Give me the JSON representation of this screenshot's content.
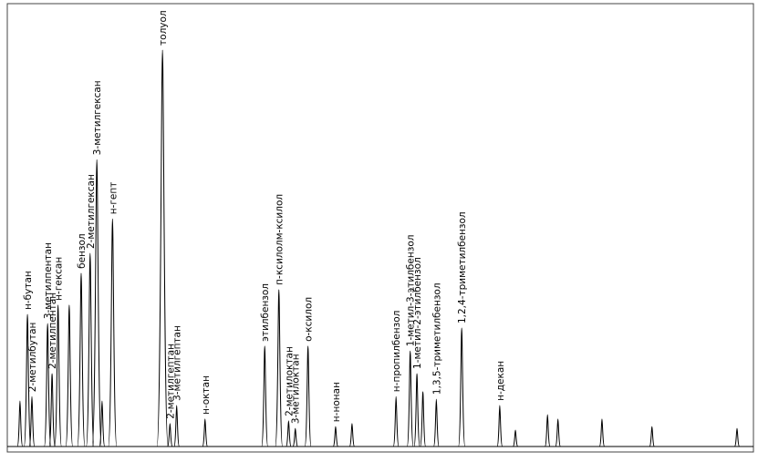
{
  "chart_data": {
    "type": "chromatogram",
    "xlim": [
      0,
      100
    ],
    "ylim": [
      0,
      100
    ],
    "labels": [
      null,
      "н-бутан",
      "2-метилбутан",
      "3-метилпентан",
      "2-метилпентан",
      "н-гексан",
      null,
      "бензол",
      "2-метилгексан",
      "3-метилгексан",
      null,
      "н-гепт",
      "толуол",
      "2-метилгептан",
      "3-метилгептан",
      "н-октан",
      "этилбензол",
      "п-ксилолм-ксилол",
      "2-метилоктан",
      "3-метилоктан",
      "о-ксилол",
      "н-нонан",
      null,
      "н-пропилбензол",
      "1-метил-3-этилбензол",
      "1-метил-2-этилбензол",
      null,
      "1,3,5-триметилбензол",
      "1,2,4-триметилбензол",
      "н-декан",
      null,
      null,
      null,
      null,
      null,
      null
    ],
    "x": [
      1.7,
      2.7,
      3.3,
      5.4,
      6.0,
      6.8,
      8.3,
      9.9,
      11.1,
      12.0,
      12.7,
      14.1,
      20.8,
      21.8,
      22.7,
      26.5,
      34.5,
      36.4,
      37.7,
      38.6,
      40.3,
      44.0,
      46.2,
      52.1,
      54.0,
      54.9,
      55.7,
      57.5,
      60.9,
      66.0,
      68.1,
      72.4,
      73.8,
      79.7,
      86.4,
      97.8
    ],
    "values": [
      10.3,
      29.9,
      11.3,
      27.8,
      16.5,
      32.0,
      32.0,
      39.2,
      43.7,
      64.9,
      10.3,
      51.5,
      89.7,
      5.2,
      9.3,
      6.2,
      22.7,
      35.5,
      5.8,
      4.1,
      22.7,
      4.5,
      5.2,
      11.3,
      21.6,
      16.5,
      12.4,
      10.7,
      26.8,
      9.3,
      3.7,
      7.2,
      6.2,
      6.2,
      4.5,
      4.1
    ]
  }
}
